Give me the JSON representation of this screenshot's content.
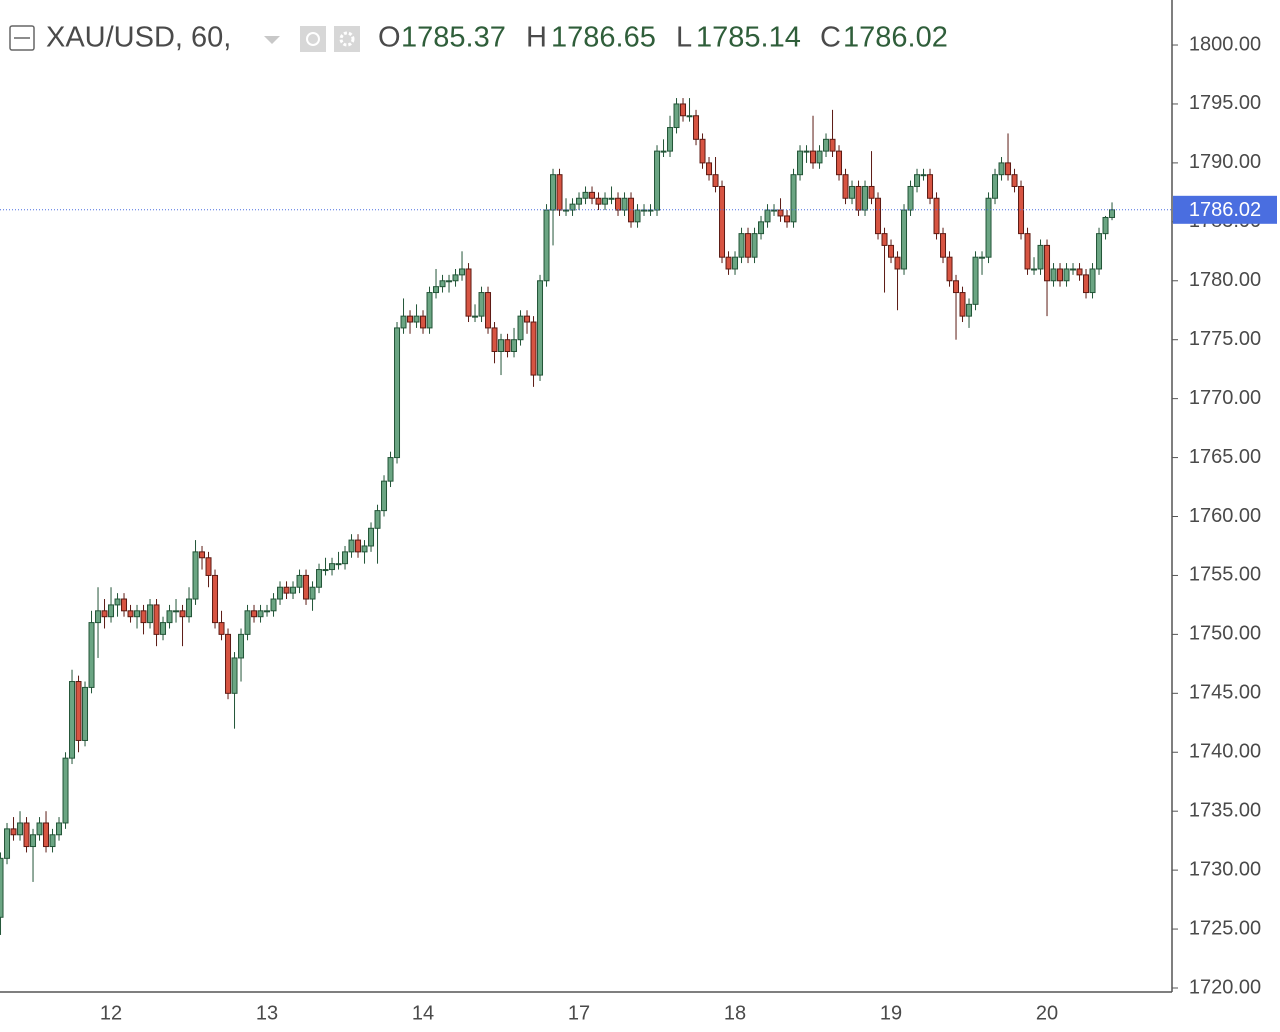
{
  "chart_data": {
    "type": "candlestick",
    "title": "XAU/USD, 60,",
    "ohlc_labels": [
      "O",
      "H",
      "L",
      "C"
    ],
    "up_color": "#6ba583",
    "up_border": "#225437",
    "down_color": "#d75442",
    "down_border": "#5b1a13",
    "last_price_color": "#4a6ee0",
    "ylim": [
      1719.66,
      1803.82
    ],
    "yticks": [
      {
        "value": 1720,
        "label": "1720.00"
      },
      {
        "value": 1725,
        "label": "1725.00"
      },
      {
        "value": 1730,
        "label": "1730.00"
      },
      {
        "value": 1735,
        "label": "1735.00"
      },
      {
        "value": 1740,
        "label": "1740.00"
      },
      {
        "value": 1745,
        "label": "1745.00"
      },
      {
        "value": 1750,
        "label": "1750.00"
      },
      {
        "value": 1755,
        "label": "1755.00"
      },
      {
        "value": 1760,
        "label": "1760.00"
      },
      {
        "value": 1765,
        "label": "1765.00"
      },
      {
        "value": 1770,
        "label": "1770.00"
      },
      {
        "value": 1775,
        "label": "1775.00"
      },
      {
        "value": 1780,
        "label": "1780.00"
      },
      {
        "value": 1785,
        "label": "1785.00"
      },
      {
        "value": 1790,
        "label": "1790.00"
      },
      {
        "value": 1795,
        "label": "1795.00"
      },
      {
        "value": 1800,
        "label": "1800.00"
      }
    ],
    "categories": [
      null,
      null,
      null,
      null,
      null,
      null,
      null,
      null,
      null,
      null,
      null,
      null,
      null,
      null,
      null,
      null,
      null,
      "12",
      null,
      null,
      null,
      null,
      null,
      null,
      null,
      null,
      null,
      null,
      null,
      null,
      null,
      null,
      null,
      null,
      null,
      null,
      null,
      null,
      null,
      null,
      null,
      "13",
      null,
      null,
      null,
      null,
      null,
      null,
      null,
      null,
      null,
      null,
      null,
      null,
      null,
      null,
      null,
      null,
      null,
      null,
      null,
      null,
      null,
      null,
      null,
      "14",
      null,
      null,
      null,
      null,
      null,
      null,
      null,
      null,
      null,
      null,
      null,
      null,
      null,
      null,
      null,
      null,
      null,
      null,
      null,
      null,
      null,
      null,
      null,
      "17",
      null,
      null,
      null,
      null,
      null,
      null,
      null,
      null,
      null,
      null,
      null,
      null,
      null,
      null,
      null,
      null,
      null,
      null,
      null,
      null,
      null,
      null,
      null,
      "18",
      null,
      null,
      null,
      null,
      null,
      null,
      null,
      null,
      null,
      null,
      null,
      null,
      null,
      null,
      null,
      null,
      null,
      null,
      null,
      null,
      null,
      null,
      null,
      "19",
      null,
      null,
      null,
      null,
      null,
      null,
      null,
      null,
      null,
      null,
      null,
      null,
      null,
      null,
      null,
      null,
      null,
      null,
      null,
      null,
      null,
      null,
      null,
      "20",
      null,
      null,
      null,
      null,
      null,
      null,
      null,
      null,
      null,
      null
    ],
    "candles": [
      [
        1726,
        1731.5,
        1724.5,
        1731
      ],
      [
        1731,
        1734,
        1730.5,
        1733.5
      ],
      [
        1733.5,
        1734.5,
        1732.5,
        1733
      ],
      [
        1733,
        1735,
        1732.5,
        1734
      ],
      [
        1734,
        1734.5,
        1731.5,
        1732
      ],
      [
        1732,
        1733.5,
        1729,
        1733
      ],
      [
        1733,
        1734.5,
        1732.5,
        1734
      ],
      [
        1734,
        1735,
        1731.5,
        1732
      ],
      [
        1732,
        1733.5,
        1731.5,
        1733
      ],
      [
        1733,
        1734.5,
        1732.5,
        1734
      ],
      [
        1734,
        1740,
        1733.5,
        1739.5
      ],
      [
        1739.5,
        1747,
        1739,
        1746
      ],
      [
        1746,
        1746.5,
        1740,
        1741
      ],
      [
        1741,
        1746,
        1740.5,
        1745.5
      ],
      [
        1745.5,
        1752,
        1745,
        1751
      ],
      [
        1751,
        1754,
        1748,
        1752
      ],
      [
        1752,
        1753,
        1750.5,
        1751.5
      ],
      [
        1751.5,
        1754,
        1751,
        1752.5
      ],
      [
        1752.5,
        1753.5,
        1751.5,
        1753
      ],
      [
        1753,
        1753.5,
        1751.5,
        1752
      ],
      [
        1752,
        1752.5,
        1751,
        1751.5
      ],
      [
        1751.5,
        1752.5,
        1750.5,
        1752
      ],
      [
        1752,
        1752.5,
        1750,
        1751
      ],
      [
        1751,
        1753,
        1750.5,
        1752.5
      ],
      [
        1752.5,
        1753,
        1749,
        1750
      ],
      [
        1750,
        1751.5,
        1749.5,
        1751
      ],
      [
        1751,
        1752.5,
        1750.5,
        1752
      ],
      [
        1752,
        1753,
        1751,
        1752
      ],
      [
        1752,
        1752.5,
        1749,
        1751.5
      ],
      [
        1751.5,
        1754,
        1751,
        1753
      ],
      [
        1753,
        1758,
        1752.5,
        1757
      ],
      [
        1757,
        1757.5,
        1755.5,
        1756.5
      ],
      [
        1756.5,
        1757,
        1754,
        1755
      ],
      [
        1755,
        1755.5,
        1750.5,
        1751
      ],
      [
        1751,
        1752,
        1749.5,
        1750
      ],
      [
        1750,
        1750.5,
        1744.5,
        1745
      ],
      [
        1745,
        1748.5,
        1742,
        1748
      ],
      [
        1748,
        1750.5,
        1746,
        1750
      ],
      [
        1750,
        1752.5,
        1749.5,
        1752
      ],
      [
        1752,
        1752.5,
        1751,
        1751.5
      ],
      [
        1751.5,
        1752.5,
        1751,
        1752
      ],
      [
        1752,
        1752.5,
        1751.5,
        1752
      ],
      [
        1752,
        1753.5,
        1751.5,
        1753
      ],
      [
        1753,
        1754.5,
        1752.5,
        1754
      ],
      [
        1754,
        1754.5,
        1753,
        1753.5
      ],
      [
        1753.5,
        1754.5,
        1753,
        1754
      ],
      [
        1754,
        1755.5,
        1753.5,
        1755
      ],
      [
        1755,
        1755.5,
        1752.5,
        1753
      ],
      [
        1753,
        1754.5,
        1752,
        1754
      ],
      [
        1754,
        1756,
        1753.5,
        1755.5
      ],
      [
        1755.5,
        1756.5,
        1755,
        1755.5
      ],
      [
        1755.5,
        1756.5,
        1755,
        1756
      ],
      [
        1756,
        1757,
        1755.5,
        1756
      ],
      [
        1756,
        1757.5,
        1755.5,
        1757
      ],
      [
        1757,
        1758.5,
        1756.5,
        1758
      ],
      [
        1758,
        1758.5,
        1756.5,
        1757
      ],
      [
        1757,
        1758,
        1756,
        1757.5
      ],
      [
        1757.5,
        1759.5,
        1757,
        1759
      ],
      [
        1759,
        1761,
        1756,
        1760.5
      ],
      [
        1760.5,
        1763.5,
        1760,
        1763
      ],
      [
        1763,
        1765.5,
        1762.5,
        1765
      ],
      [
        1765,
        1776.5,
        1764.5,
        1776
      ],
      [
        1776,
        1778.5,
        1775.5,
        1777
      ],
      [
        1777,
        1777.5,
        1775.5,
        1776.5
      ],
      [
        1776.5,
        1778,
        1776,
        1777
      ],
      [
        1777,
        1777.5,
        1775.5,
        1776
      ],
      [
        1776,
        1779.5,
        1775.5,
        1779
      ],
      [
        1779,
        1781,
        1778.5,
        1779.5
      ],
      [
        1779.5,
        1780.5,
        1779,
        1780
      ],
      [
        1780,
        1780.5,
        1779,
        1780
      ],
      [
        1780,
        1781,
        1779.5,
        1780.5
      ],
      [
        1780.5,
        1782.5,
        1780,
        1781
      ],
      [
        1781,
        1781.5,
        1776.5,
        1777
      ],
      [
        1777,
        1778,
        1776.5,
        1777
      ],
      [
        1777,
        1779.5,
        1776.5,
        1779
      ],
      [
        1779,
        1779.5,
        1775.5,
        1776
      ],
      [
        1776,
        1776.5,
        1773,
        1774
      ],
      [
        1774,
        1775.5,
        1772,
        1775
      ],
      [
        1775,
        1775.5,
        1773.5,
        1774
      ],
      [
        1774,
        1776,
        1773.5,
        1775
      ],
      [
        1775,
        1777.5,
        1774.5,
        1777
      ],
      [
        1777,
        1777.5,
        1775.5,
        1776.5
      ],
      [
        1776.5,
        1777,
        1771,
        1772
      ],
      [
        1772,
        1780.5,
        1771.5,
        1780
      ],
      [
        1780,
        1786.5,
        1779.5,
        1786
      ],
      [
        1786,
        1789.5,
        1783,
        1789
      ],
      [
        1789,
        1789.5,
        1785.5,
        1786
      ],
      [
        1786,
        1787,
        1785.5,
        1786
      ],
      [
        1786,
        1787,
        1785.5,
        1786.5
      ],
      [
        1786.5,
        1787.5,
        1786,
        1787
      ],
      [
        1787,
        1788,
        1786.5,
        1787.5
      ],
      [
        1787.5,
        1788,
        1786.5,
        1787
      ],
      [
        1787,
        1787.5,
        1786,
        1786.5
      ],
      [
        1786.5,
        1787.5,
        1786,
        1787
      ],
      [
        1787,
        1788,
        1786.5,
        1787
      ],
      [
        1787,
        1787.5,
        1785.5,
        1786
      ],
      [
        1786,
        1787.5,
        1785.5,
        1787
      ],
      [
        1787,
        1787.5,
        1784.5,
        1785
      ],
      [
        1785,
        1786.5,
        1784.5,
        1786
      ],
      [
        1786,
        1786.5,
        1785.5,
        1786
      ],
      [
        1786,
        1786.5,
        1785.5,
        1786
      ],
      [
        1786,
        1791.5,
        1785.5,
        1791
      ],
      [
        1791,
        1792,
        1790.5,
        1791
      ],
      [
        1791,
        1794,
        1790.5,
        1793
      ],
      [
        1793,
        1795.5,
        1792.5,
        1795
      ],
      [
        1795,
        1795.5,
        1793.5,
        1794
      ],
      [
        1794,
        1795.5,
        1793.5,
        1794
      ],
      [
        1794,
        1794.5,
        1791.5,
        1792
      ],
      [
        1792,
        1792.5,
        1789.5,
        1790
      ],
      [
        1790,
        1790.5,
        1788.5,
        1789
      ],
      [
        1789,
        1790.5,
        1787.5,
        1788
      ],
      [
        1788,
        1788.5,
        1781.5,
        1782
      ],
      [
        1782,
        1782.5,
        1780.5,
        1781
      ],
      [
        1781,
        1782.5,
        1780.5,
        1782
      ],
      [
        1782,
        1784.5,
        1781.5,
        1784
      ],
      [
        1784,
        1784.5,
        1781.5,
        1782
      ],
      [
        1782,
        1784.5,
        1781.5,
        1784
      ],
      [
        1784,
        1785.5,
        1783.5,
        1785
      ],
      [
        1785,
        1786.5,
        1784.5,
        1786
      ],
      [
        1786,
        1786.5,
        1785.5,
        1786
      ],
      [
        1786,
        1787,
        1785,
        1785.5
      ],
      [
        1785.5,
        1786,
        1784.5,
        1785
      ],
      [
        1785,
        1789.5,
        1784.5,
        1789
      ],
      [
        1789,
        1791.5,
        1788.5,
        1791
      ],
      [
        1791,
        1791.5,
        1790,
        1791
      ],
      [
        1791,
        1794,
        1789.5,
        1790
      ],
      [
        1790,
        1791.5,
        1789.5,
        1791
      ],
      [
        1791,
        1792.5,
        1790.5,
        1792
      ],
      [
        1792,
        1794.5,
        1790.5,
        1791
      ],
      [
        1791,
        1791.5,
        1788.5,
        1789
      ],
      [
        1789,
        1789.5,
        1786.5,
        1787
      ],
      [
        1787,
        1788.5,
        1786.5,
        1788
      ],
      [
        1788,
        1788.5,
        1785.5,
        1786
      ],
      [
        1786,
        1788.5,
        1785.5,
        1788
      ],
      [
        1788,
        1791,
        1786.5,
        1787
      ],
      [
        1787,
        1787.5,
        1783.5,
        1784
      ],
      [
        1784,
        1784.5,
        1779,
        1783
      ],
      [
        1783,
        1783.5,
        1781.5,
        1782
      ],
      [
        1782,
        1782.5,
        1777.5,
        1781
      ],
      [
        1781,
        1786.5,
        1780.5,
        1786
      ],
      [
        1786,
        1788.5,
        1785.5,
        1788
      ],
      [
        1788,
        1789.5,
        1787.5,
        1789
      ],
      [
        1789,
        1789.5,
        1788.5,
        1789
      ],
      [
        1789,
        1789.5,
        1786.5,
        1787
      ],
      [
        1787,
        1787.5,
        1783.5,
        1784
      ],
      [
        1784,
        1784.5,
        1781.5,
        1782
      ],
      [
        1782,
        1782.5,
        1779.5,
        1780
      ],
      [
        1780,
        1780.5,
        1775,
        1779
      ],
      [
        1779,
        1779.5,
        1776.5,
        1777
      ],
      [
        1777,
        1778.5,
        1776,
        1778
      ],
      [
        1778,
        1782.5,
        1777.5,
        1782
      ],
      [
        1782,
        1782.5,
        1780.5,
        1782
      ],
      [
        1782,
        1787.5,
        1781.5,
        1787
      ],
      [
        1787,
        1789.5,
        1786.5,
        1789
      ],
      [
        1789,
        1790.5,
        1788.5,
        1790
      ],
      [
        1790,
        1792.5,
        1788.5,
        1789
      ],
      [
        1789,
        1789.5,
        1787.5,
        1788
      ],
      [
        1788,
        1788.5,
        1783.5,
        1784
      ],
      [
        1784,
        1784.5,
        1780.5,
        1781
      ],
      [
        1781,
        1782,
        1780.5,
        1781
      ],
      [
        1781,
        1783.5,
        1780.5,
        1783
      ],
      [
        1783,
        1783.5,
        1777,
        1780
      ],
      [
        1780,
        1781.5,
        1779.5,
        1781
      ],
      [
        1781,
        1781.5,
        1779.5,
        1780
      ],
      [
        1780,
        1781.5,
        1779.5,
        1781
      ],
      [
        1781,
        1781.5,
        1780.5,
        1781
      ],
      [
        1781,
        1781.5,
        1780,
        1780.5
      ],
      [
        1780.5,
        1781,
        1778.5,
        1779
      ],
      [
        1779,
        1781.5,
        1778.5,
        1781
      ],
      [
        1781,
        1784.5,
        1780.5,
        1784
      ],
      [
        1784,
        1785.5,
        1783.5,
        1785.37
      ],
      [
        1785.37,
        1786.65,
        1785.14,
        1786.02
      ]
    ]
  }
}
